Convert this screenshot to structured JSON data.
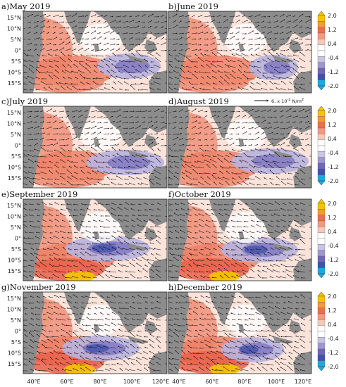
{
  "figure": {
    "panels": [
      {
        "title": "a)May 2019"
      },
      {
        "title": "b)June 2019"
      },
      {
        "title": "c)July 2019"
      },
      {
        "title": "d)August 2019"
      },
      {
        "title": "e)September 2019"
      },
      {
        "title": "f)October 2019"
      },
      {
        "title": "g)November 2019"
      },
      {
        "title": "h)December 2019"
      }
    ],
    "lat_labels": [
      "15°N",
      "10°N",
      "5°N",
      "0°",
      "5°S",
      "10°S",
      "15°S"
    ],
    "lon_labels": [
      "40°E",
      "60°E",
      "80°E",
      "100°E",
      "120°E"
    ],
    "reference_vector_label": "6. x 10",
    "reference_vector_exponent": "-2",
    "reference_vector_unit": "N/m",
    "reference_vector_unit_exponent": "2",
    "colorbar_ticks": [
      "2.0",
      "1.2",
      "0.4",
      "-0.4",
      "-1.2",
      "-2.0"
    ],
    "colorbar_colors": [
      "#f5c400",
      "#f39a3a",
      "#ec6e52",
      "#f39a7c",
      "#f8c8b8",
      "#ffffff",
      "#ffffff",
      "#c8c4e6",
      "#9f97d0",
      "#6f66b8",
      "#3f53a8",
      "#1fa8e0"
    ],
    "land_color": "#8c8c8c"
  }
}
